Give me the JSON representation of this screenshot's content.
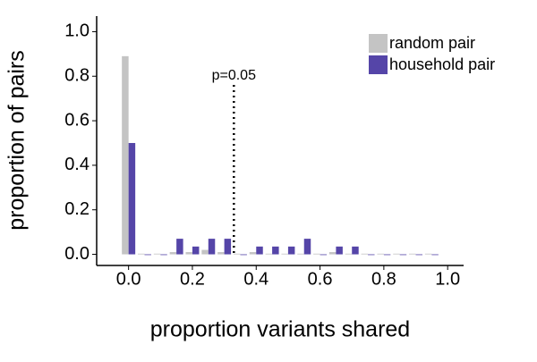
{
  "chart_data": {
    "type": "bar",
    "x_label": "proportion variants shared",
    "y_label": "proportion of pairs",
    "x": [
      0,
      0.05,
      0.1,
      0.15,
      0.2,
      0.25,
      0.3,
      0.35,
      0.4,
      0.45,
      0.5,
      0.55,
      0.6,
      0.65,
      0.7,
      0.75,
      0.8,
      0.85,
      0.9,
      0.95
    ],
    "series": [
      {
        "name": "random pair",
        "color": "#c4c4c4",
        "values": [
          0.89,
          0.003,
          0.003,
          0.01,
          0.01,
          0.02,
          0.01,
          0.003,
          0.01,
          0.003,
          0.003,
          0.003,
          0.003,
          0.01,
          0.003,
          0.003,
          0.003,
          0.003,
          0.003,
          0.003
        ]
      },
      {
        "name": "household pair",
        "color": "#5545a8",
        "values": [
          0.5,
          0,
          0,
          0.07,
          0.035,
          0.07,
          0.07,
          0,
          0.035,
          0.035,
          0.035,
          0.07,
          0,
          0.035,
          0.035,
          0,
          0,
          0,
          0,
          0
        ]
      }
    ],
    "xlim": [
      -0.1,
      1.05
    ],
    "ylim": [
      -0.05,
      1.07
    ],
    "xticks": [
      {
        "value": 0,
        "label": "0.0"
      },
      0.2,
      0.4,
      0.6,
      0.8,
      {
        "value": 1,
        "label": "1.0"
      }
    ],
    "yticks": [
      {
        "value": 0,
        "label": "0.0"
      },
      0.2,
      0.4,
      0.6,
      0.8,
      {
        "value": 1,
        "label": "1.0"
      }
    ],
    "vline": {
      "x": 0.33,
      "label": "p=0.05"
    },
    "legend": "top-right",
    "grid": false
  }
}
